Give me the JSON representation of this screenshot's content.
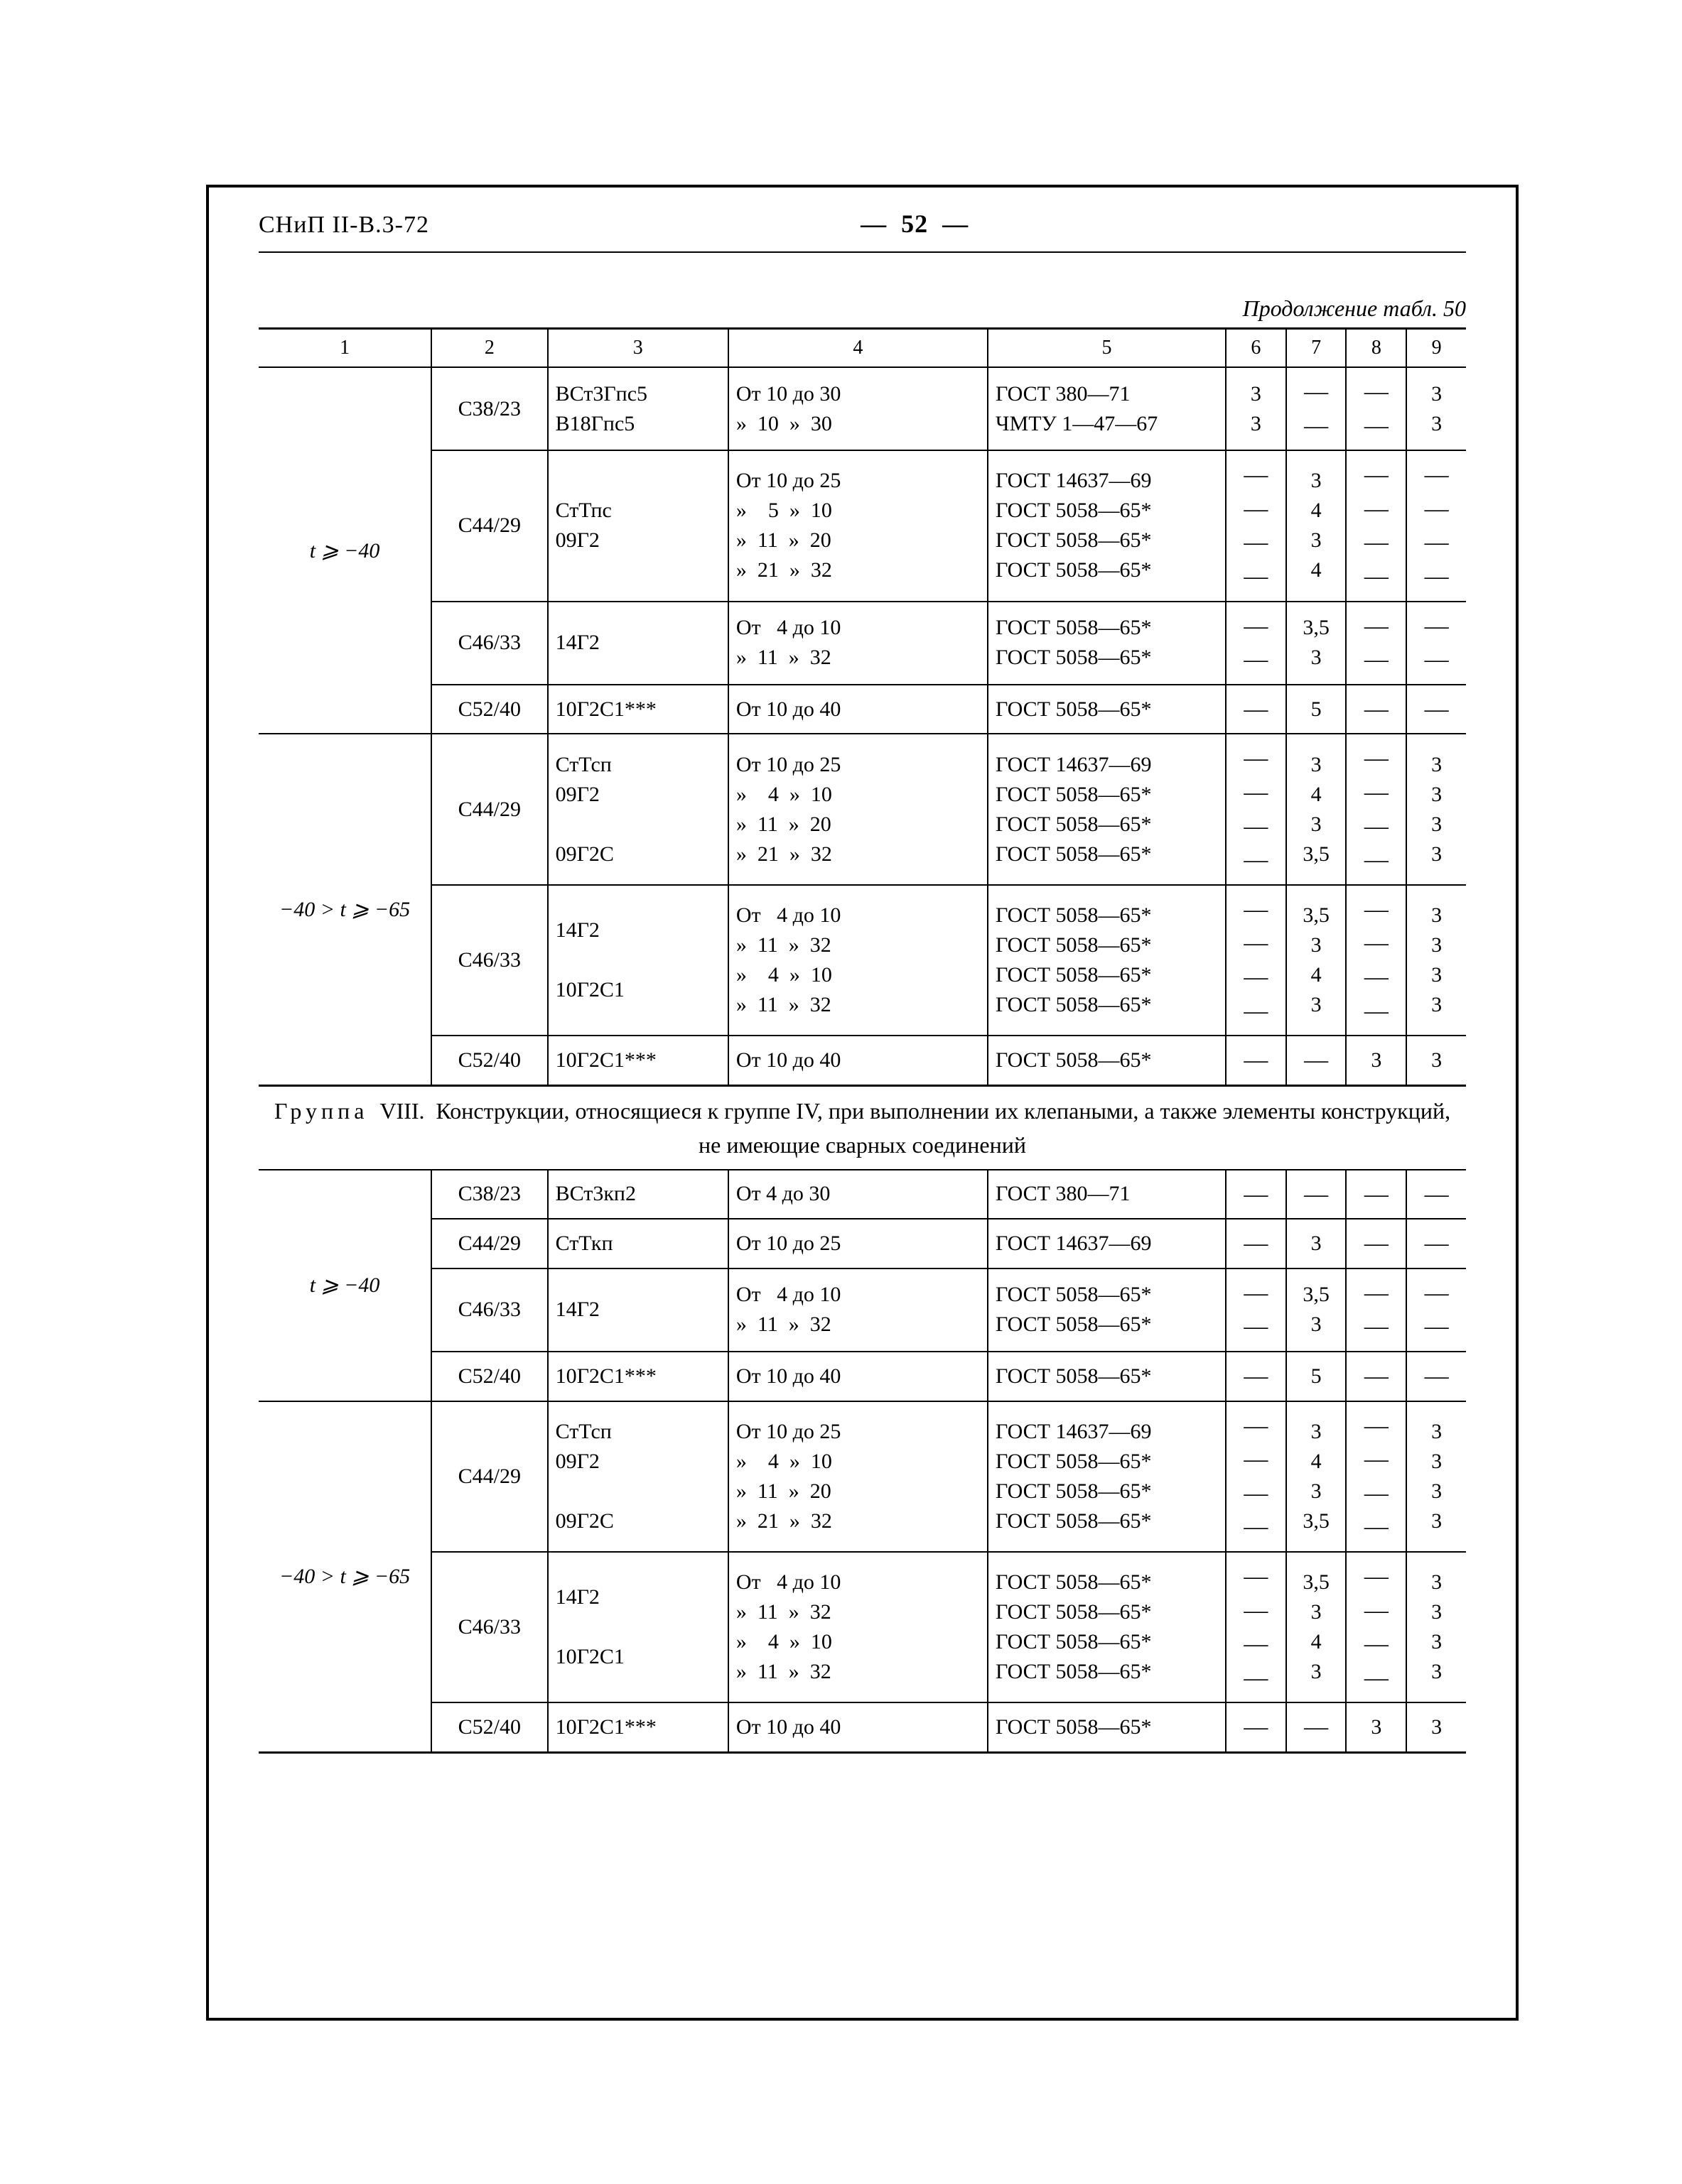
{
  "header": {
    "left": "СНиП II-В.3-72",
    "center_prefix": "—",
    "center_page": "52",
    "center_suffix": "—"
  },
  "caption": "Продолжение табл. 50",
  "col_headers": [
    "1",
    "2",
    "3",
    "4",
    "5",
    "6",
    "7",
    "8",
    "9"
  ],
  "section_title": {
    "prefix": "Группа",
    "roman": "VIII.",
    "text": "Конструкции, относящиеся к группе IV, при выполнении их клепаными, а также элементы конструкций, не имеющие сварных соединений"
  },
  "cond": {
    "t_ge_m40": "t ⩾ −40",
    "t_range": "−40 > t ⩾ −65"
  },
  "dash": "—",
  "blockA": {
    "r1": {
      "c2": "С38/23",
      "c3a": "ВСт3Гпс5",
      "c3b": "В18Гпс5",
      "c4a": "От 10 до 30",
      "c4b": "»  10  »  30",
      "c5a": "ГОСТ 380—71",
      "c5b": "ЧМТУ 1—47—67",
      "c6a": "3",
      "c6b": "3",
      "c9a": "3",
      "c9b": "3"
    },
    "r2": {
      "c2": "С44/29",
      "c3a": "СтТпс",
      "c3b": "09Г2",
      "c4a": "От 10 до 25",
      "c4b": "»    5  »  10",
      "c4c": "»  11  »  20",
      "c4d": "»  21  »  32",
      "c5a": "ГОСТ 14637—69",
      "c5b": "ГОСТ 5058—65*",
      "c5c": "ГОСТ 5058—65*",
      "c5d": "ГОСТ 5058—65*",
      "c7a": "3",
      "c7b": "4",
      "c7c": "3",
      "c7d": "4"
    },
    "r3": {
      "c2": "С46/33",
      "c3": "14Г2",
      "c4a": "От   4 до 10",
      "c4b": "»  11  »  32",
      "c5a": "ГОСТ 5058—65*",
      "c5b": "ГОСТ 5058—65*",
      "c7a": "3,5",
      "c7b": "3"
    },
    "r4": {
      "c2": "С52/40",
      "c3": "10Г2С1***",
      "c4": "От 10 до 40",
      "c5": "ГОСТ 5058—65*",
      "c7": "5"
    }
  },
  "blockB": {
    "r1": {
      "c2": "С44/29",
      "c3a": "СтТсп",
      "c3b": "09Г2",
      "c3c": "09Г2С",
      "c4a": "От 10 до 25",
      "c4b": "»    4  »  10",
      "c4c": "»  11  »  20",
      "c4d": "»  21  »  32",
      "c5a": "ГОСТ 14637—69",
      "c5b": "ГОСТ 5058—65*",
      "c5c": "ГОСТ 5058—65*",
      "c5d": "ГОСТ 5058—65*",
      "c7a": "3",
      "c7b": "4",
      "c7c": "3",
      "c7d": "3,5",
      "c9a": "3",
      "c9b": "3",
      "c9c": "3",
      "c9d": "3"
    },
    "r2": {
      "c2": "С46/33",
      "c3a": "14Г2",
      "c3b": "10Г2С1",
      "c4a": "От   4 до 10",
      "c4b": "»  11  »  32",
      "c4c": "»    4  »  10",
      "c4d": "»  11  »  32",
      "c5a": "ГОСТ 5058—65*",
      "c5b": "ГОСТ 5058—65*",
      "c5c": "ГОСТ 5058—65*",
      "c5d": "ГОСТ 5058—65*",
      "c7a": "3,5",
      "c7b": "3",
      "c7c": "4",
      "c7d": "3",
      "c9a": "3",
      "c9b": "3",
      "c9c": "3",
      "c9d": "3"
    },
    "r3": {
      "c2": "С52/40",
      "c3": "10Г2С1***",
      "c4": "От 10 до 40",
      "c5": "ГОСТ 5058—65*",
      "c8": "3",
      "c9": "3"
    }
  },
  "blockC": {
    "r1": {
      "c2": "С38/23",
      "c3": "ВСт3кп2",
      "c4": "От  4 до 30",
      "c5": "ГОСТ 380—71"
    },
    "r2": {
      "c2": "С44/29",
      "c3": "СтТкп",
      "c4": "От 10 до 25",
      "c5": "ГОСТ 14637—69",
      "c7": "3"
    },
    "r3": {
      "c2": "С46/33",
      "c3": "14Г2",
      "c4a": "От   4 до 10",
      "c4b": "»  11  »  32",
      "c5a": "ГОСТ 5058—65*",
      "c5b": "ГОСТ 5058—65*",
      "c7a": "3,5",
      "c7b": "3"
    },
    "r4": {
      "c2": "С52/40",
      "c3": "10Г2С1***",
      "c4": "От 10 до 40",
      "c5": "ГОСТ 5058—65*",
      "c7": "5"
    }
  },
  "blockD": {
    "r1": {
      "c2": "С44/29",
      "c3a": "СтТсп",
      "c3b": "09Г2",
      "c3c": "09Г2С",
      "c4a": "От 10 до 25",
      "c4b": "»    4  »  10",
      "c4c": "»  11  »  20",
      "c4d": "»  21  »  32",
      "c5a": "ГОСТ 14637—69",
      "c5b": "ГОСТ 5058—65*",
      "c5c": "ГОСТ 5058—65*",
      "c5d": "ГОСТ 5058—65*",
      "c7a": "3",
      "c7b": "4",
      "c7c": "3",
      "c7d": "3,5",
      "c9a": "3",
      "c9b": "3",
      "c9c": "3",
      "c9d": "3"
    },
    "r2": {
      "c2": "С46/33",
      "c3a": "14Г2",
      "c3b": "10Г2С1",
      "c4a": "От   4 до 10",
      "c4b": "»  11  »  32",
      "c4c": "»    4  »  10",
      "c4d": "»  11  »  32",
      "c5a": "ГОСТ 5058—65*",
      "c5b": "ГОСТ 5058—65*",
      "c5c": "ГОСТ 5058—65*",
      "c5d": "ГОСТ 5058—65*",
      "c7a": "3,5",
      "c7b": "3",
      "c7c": "4",
      "c7d": "3",
      "c9a": "3",
      "c9b": "3",
      "c9c": "3",
      "c9d": "3"
    },
    "r3": {
      "c2": "С52/40",
      "c3": "10Г2С1***",
      "c4": "От 10 до 40",
      "c5": "ГОСТ 5058—65*",
      "c8": "3",
      "c9": "3"
    }
  }
}
